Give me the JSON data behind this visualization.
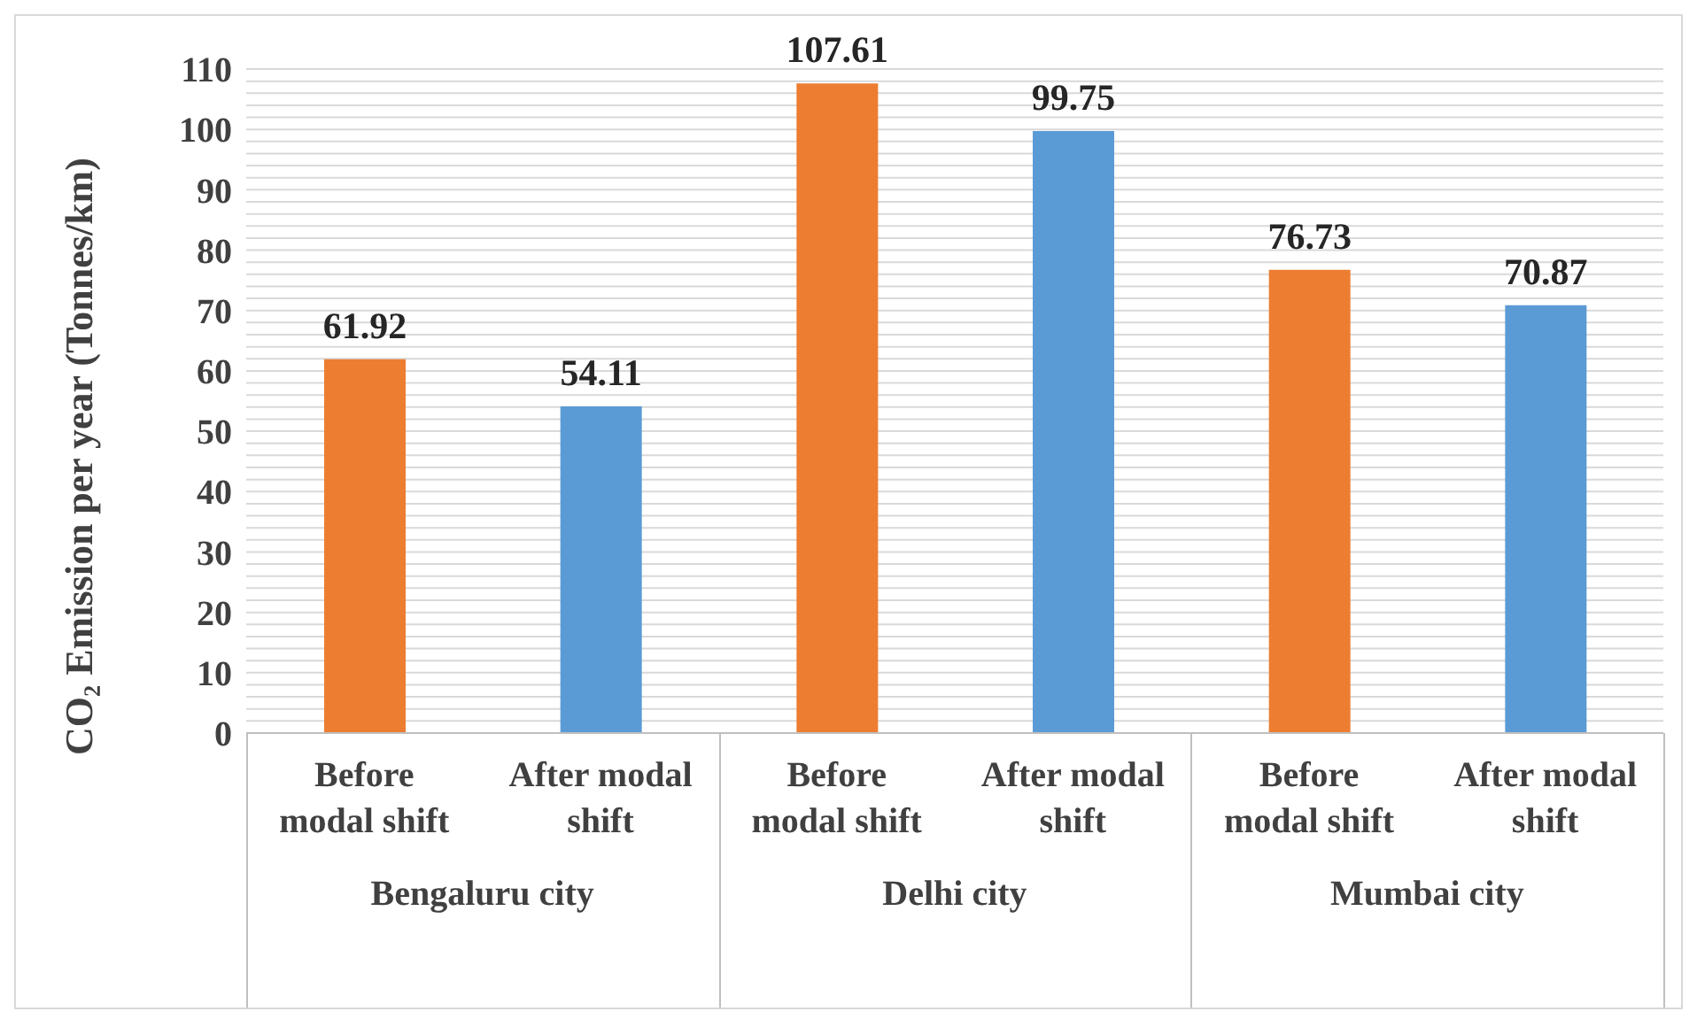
{
  "chart_data": {
    "type": "bar",
    "ylabel": "CO₂ Emission per year (Tonnes/km)",
    "categories": [
      "Before modal shift",
      "After modal shift",
      "Before modal shift",
      "After modal shift",
      "Before modal shift",
      "After modal shift"
    ],
    "values": [
      61.92,
      54.11,
      107.61,
      99.75,
      76.73,
      70.87
    ],
    "colors": [
      "#ed7d31",
      "#5b9bd5",
      "#ed7d31",
      "#5b9bd5",
      "#ed7d31",
      "#5b9bd5"
    ],
    "annotations": [
      "Bengaluru city",
      "Delhi city",
      "Mumbai city"
    ],
    "ylim": [
      0,
      110
    ],
    "yticks": [
      0,
      {
        "value": 2,
        "label": null
      },
      {
        "value": 4,
        "label": null
      },
      {
        "value": 6,
        "label": null
      },
      {
        "value": 8,
        "label": null
      },
      10,
      {
        "value": 12,
        "label": null
      },
      {
        "value": 14,
        "label": null
      },
      {
        "value": 16,
        "label": null
      },
      {
        "value": 18,
        "label": null
      },
      20,
      {
        "value": 22,
        "label": null
      },
      {
        "value": 24,
        "label": null
      },
      {
        "value": 26,
        "label": null
      },
      {
        "value": 28,
        "label": null
      },
      30,
      {
        "value": 32,
        "label": null
      },
      {
        "value": 34,
        "label": null
      },
      {
        "value": 36,
        "label": null
      },
      {
        "value": 38,
        "label": null
      },
      40,
      {
        "value": 42,
        "label": null
      },
      {
        "value": 44,
        "label": null
      },
      {
        "value": 46,
        "label": null
      },
      {
        "value": 48,
        "label": null
      },
      50,
      {
        "value": 52,
        "label": null
      },
      {
        "value": 54,
        "label": null
      },
      {
        "value": 56,
        "label": null
      },
      {
        "value": 58,
        "label": null
      },
      60,
      {
        "value": 62,
        "label": null
      },
      {
        "value": 64,
        "label": null
      },
      {
        "value": 66,
        "label": null
      },
      {
        "value": 68,
        "label": null
      },
      70,
      {
        "value": 72,
        "label": null
      },
      {
        "value": 74,
        "label": null
      },
      {
        "value": 76,
        "label": null
      },
      {
        "value": 78,
        "label": null
      },
      80,
      {
        "value": 82,
        "label": null
      },
      {
        "value": 84,
        "label": null
      },
      {
        "value": 86,
        "label": null
      },
      {
        "value": 88,
        "label": null
      },
      90,
      {
        "value": 92,
        "label": null
      },
      {
        "value": 94,
        "label": null
      },
      {
        "value": 96,
        "label": null
      },
      {
        "value": 98,
        "label": null
      },
      100,
      {
        "value": 102,
        "label": null
      },
      {
        "value": 104,
        "label": null
      },
      {
        "value": 106,
        "label": null
      },
      {
        "value": 108,
        "label": null
      },
      110
    ],
    "grid": "y",
    "data_labels": true,
    "legend": false
  }
}
